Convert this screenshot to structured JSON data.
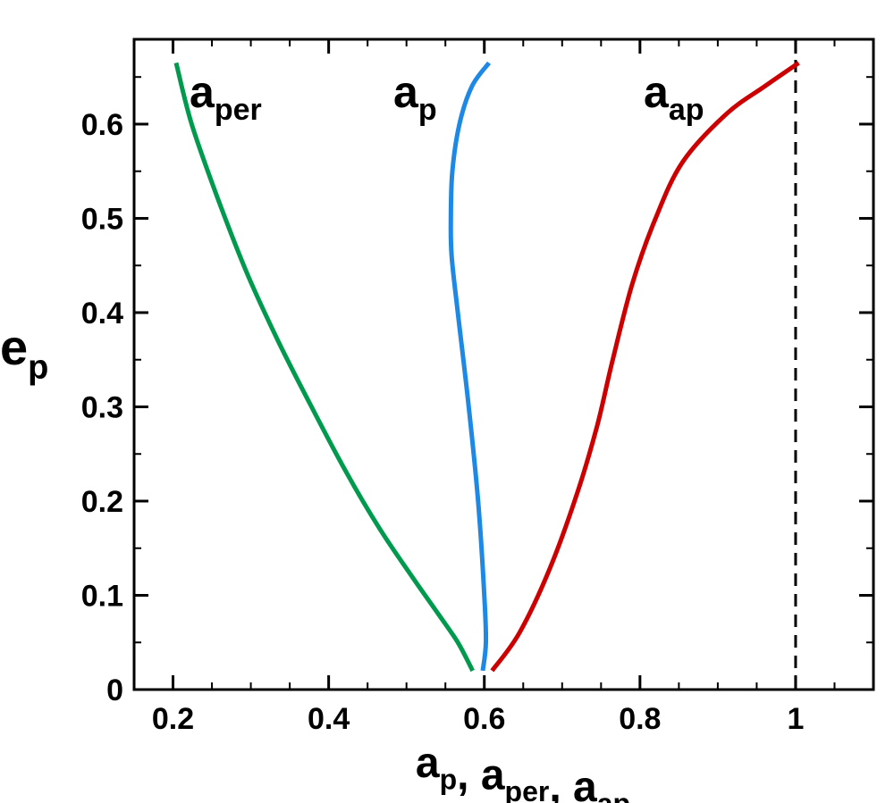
{
  "chart_data": {
    "type": "line",
    "xlabel": "a_p, a_per, a_ap",
    "ylabel": "e_p",
    "xlim": [
      0.15,
      1.1
    ],
    "ylim": [
      0,
      0.69
    ],
    "xticks": [
      0.2,
      0.4,
      0.6,
      0.8,
      1.0
    ],
    "xtick_labels": [
      "0.2",
      "0.4",
      "0.6",
      "0.8",
      "1"
    ],
    "yticks": [
      0,
      0.1,
      0.2,
      0.3,
      0.4,
      0.5,
      0.6
    ],
    "ytick_labels": [
      "0",
      "0.1",
      "0.2",
      "0.3",
      "0.4",
      "0.5",
      "0.6"
    ],
    "grid": false,
    "legend": "inline labels",
    "series": [
      {
        "name": "a_per",
        "color": "#009a4e",
        "x": [
          0.585,
          0.566,
          0.541,
          0.507,
          0.466,
          0.423,
          0.378,
          0.335,
          0.296,
          0.258,
          0.224,
          0.204
        ],
        "y": [
          0.02,
          0.05,
          0.08,
          0.12,
          0.17,
          0.23,
          0.3,
          0.37,
          0.44,
          0.52,
          0.6,
          0.665
        ]
      },
      {
        "name": "a_p",
        "color": "#1e88e5",
        "x": [
          0.598,
          0.602,
          0.6,
          0.592,
          0.58,
          0.566,
          0.558,
          0.557,
          0.559,
          0.568,
          0.584,
          0.606
        ],
        "y": [
          0.02,
          0.05,
          0.1,
          0.2,
          0.3,
          0.4,
          0.46,
          0.5,
          0.55,
          0.6,
          0.64,
          0.665
        ]
      },
      {
        "name": "a_ap",
        "color": "#cc0000",
        "x": [
          0.61,
          0.645,
          0.685,
          0.72,
          0.745,
          0.765,
          0.79,
          0.82,
          0.855,
          0.91,
          0.96,
          1.004
        ],
        "y": [
          0.02,
          0.06,
          0.13,
          0.21,
          0.28,
          0.35,
          0.43,
          0.5,
          0.56,
          0.61,
          0.64,
          0.665
        ]
      }
    ],
    "reference_lines": [
      {
        "type": "vertical",
        "x": 1.0,
        "style": "dashed",
        "color": "#000000"
      }
    ]
  }
}
